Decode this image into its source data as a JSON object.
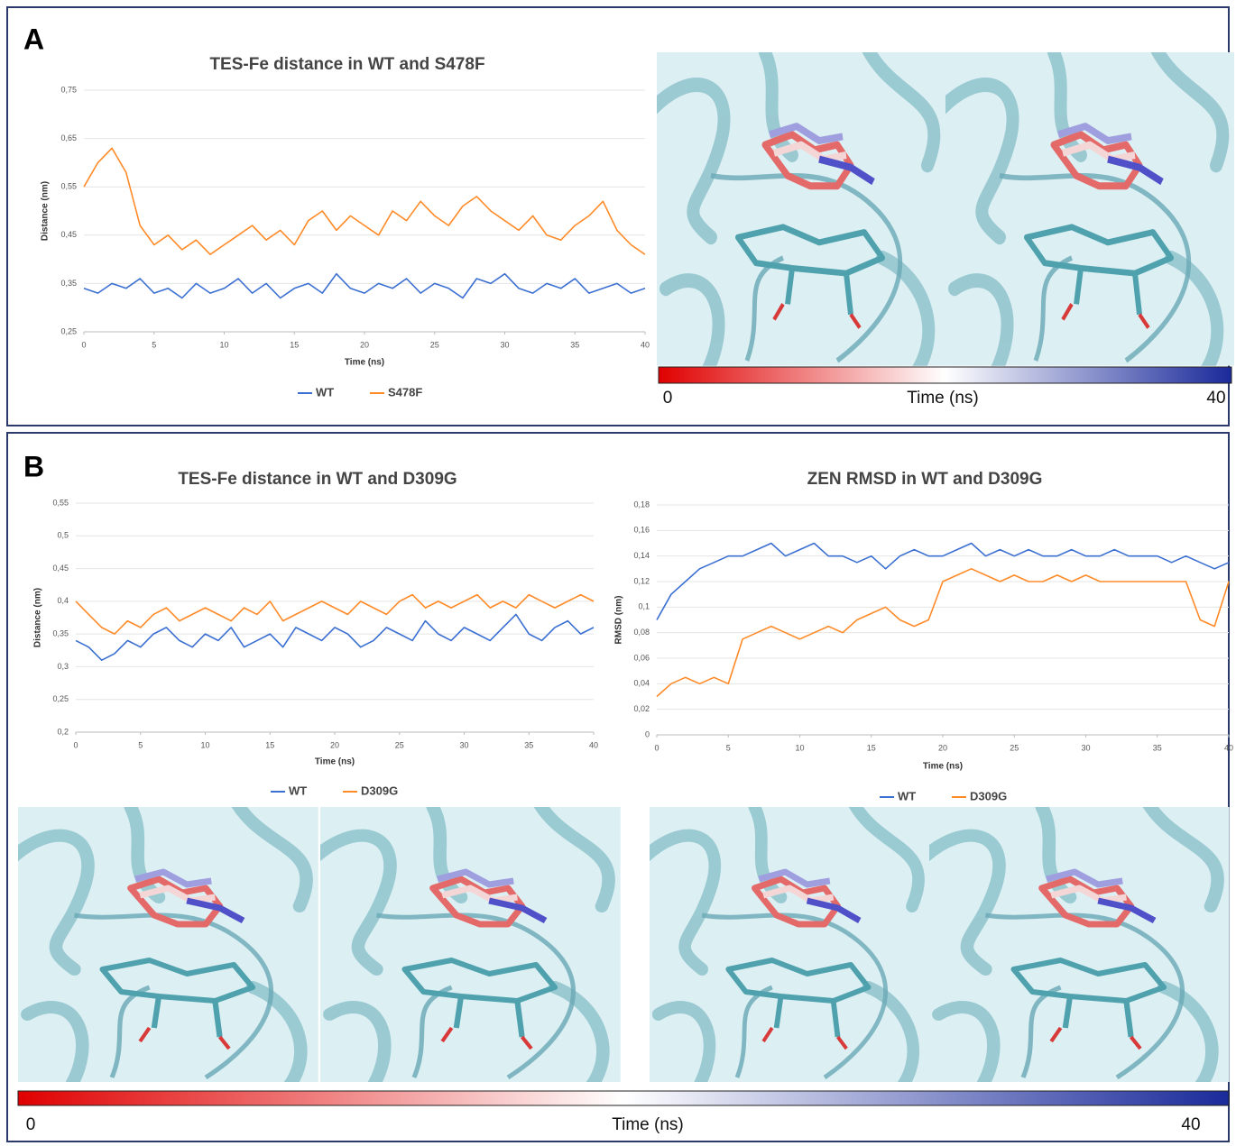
{
  "panels": [
    {
      "label": "A"
    },
    {
      "label": "B"
    }
  ],
  "colorbars": [
    {
      "range": [
        0,
        40
      ],
      "label": "Time (ns)"
    },
    {
      "range": [
        0,
        40
      ],
      "label": "Time (ns)"
    }
  ],
  "chart_data": [
    {
      "type": "line",
      "title": "TES-Fe distance in WT and S478F",
      "x_label": "Time (ns)",
      "y_label": "Distance (nm)",
      "grid": true,
      "x": [
        0,
        1,
        2,
        3,
        4,
        5,
        6,
        7,
        8,
        9,
        10,
        11,
        12,
        13,
        14,
        15,
        16,
        17,
        18,
        19,
        20,
        21,
        22,
        23,
        24,
        25,
        26,
        27,
        28,
        29,
        30,
        31,
        32,
        33,
        34,
        35,
        36,
        37,
        38,
        39,
        40
      ],
      "xlim": [
        0,
        40
      ],
      "xticks": [
        0,
        5,
        10,
        15,
        20,
        25,
        30,
        35,
        40
      ],
      "ylim": [
        0.25,
        0.75
      ],
      "yticks": [
        {
          "value": 0.25,
          "label": "0,25"
        },
        {
          "value": 0.35,
          "label": "0,35"
        },
        {
          "value": 0.45,
          "label": "0,45"
        },
        {
          "value": 0.55,
          "label": "0,55"
        },
        {
          "value": 0.65,
          "label": "0,65"
        },
        {
          "value": 0.75,
          "label": "0,75"
        }
      ],
      "series": [
        {
          "name": "WT",
          "color": "#3b6fd1",
          "values": [
            0.34,
            0.33,
            0.35,
            0.34,
            0.36,
            0.33,
            0.34,
            0.32,
            0.35,
            0.33,
            0.34,
            0.36,
            0.33,
            0.35,
            0.32,
            0.34,
            0.35,
            0.33,
            0.37,
            0.34,
            0.33,
            0.35,
            0.34,
            0.36,
            0.33,
            0.35,
            0.34,
            0.32,
            0.36,
            0.35,
            0.37,
            0.34,
            0.33,
            0.35,
            0.34,
            0.36,
            0.33,
            0.34,
            0.35,
            0.33,
            0.34
          ]
        },
        {
          "name": "S478F",
          "color": "#ff8a28",
          "values": [
            0.55,
            0.6,
            0.63,
            0.58,
            0.47,
            0.43,
            0.45,
            0.42,
            0.44,
            0.41,
            0.43,
            0.45,
            0.47,
            0.44,
            0.46,
            0.43,
            0.48,
            0.5,
            0.46,
            0.49,
            0.47,
            0.45,
            0.5,
            0.48,
            0.52,
            0.49,
            0.47,
            0.51,
            0.53,
            0.5,
            0.48,
            0.46,
            0.49,
            0.45,
            0.44,
            0.47,
            0.49,
            0.52,
            0.46,
            0.43,
            0.41
          ]
        }
      ]
    },
    {
      "type": "line",
      "title": "TES-Fe distance in WT and D309G",
      "x_label": "Time (ns)",
      "y_label": "Distance (nm)",
      "grid": true,
      "x": [
        0,
        1,
        2,
        3,
        4,
        5,
        6,
        7,
        8,
        9,
        10,
        11,
        12,
        13,
        14,
        15,
        16,
        17,
        18,
        19,
        20,
        21,
        22,
        23,
        24,
        25,
        26,
        27,
        28,
        29,
        30,
        31,
        32,
        33,
        34,
        35,
        36,
        37,
        38,
        39,
        40
      ],
      "xlim": [
        0,
        40
      ],
      "xticks": [
        0,
        5,
        10,
        15,
        20,
        25,
        30,
        35,
        40
      ],
      "ylim": [
        0.2,
        0.55
      ],
      "yticks": [
        {
          "value": 0.2,
          "label": "0,2"
        },
        {
          "value": 0.25,
          "label": "0,25"
        },
        {
          "value": 0.3,
          "label": "0,3"
        },
        {
          "value": 0.35,
          "label": "0,35"
        },
        {
          "value": 0.4,
          "label": "0,4"
        },
        {
          "value": 0.45,
          "label": "0,45"
        },
        {
          "value": 0.5,
          "label": "0,5"
        },
        {
          "value": 0.55,
          "label": "0,55"
        }
      ],
      "series": [
        {
          "name": "WT",
          "color": "#3b6fd1",
          "values": [
            0.34,
            0.33,
            0.31,
            0.32,
            0.34,
            0.33,
            0.35,
            0.36,
            0.34,
            0.33,
            0.35,
            0.34,
            0.36,
            0.33,
            0.34,
            0.35,
            0.33,
            0.36,
            0.35,
            0.34,
            0.36,
            0.35,
            0.33,
            0.34,
            0.36,
            0.35,
            0.34,
            0.37,
            0.35,
            0.34,
            0.36,
            0.35,
            0.34,
            0.36,
            0.38,
            0.35,
            0.34,
            0.36,
            0.37,
            0.35,
            0.36
          ]
        },
        {
          "name": "D309G",
          "color": "#ff8a28",
          "values": [
            0.4,
            0.38,
            0.36,
            0.35,
            0.37,
            0.36,
            0.38,
            0.39,
            0.37,
            0.38,
            0.39,
            0.38,
            0.37,
            0.39,
            0.38,
            0.4,
            0.37,
            0.38,
            0.39,
            0.4,
            0.39,
            0.38,
            0.4,
            0.39,
            0.38,
            0.4,
            0.41,
            0.39,
            0.4,
            0.39,
            0.4,
            0.41,
            0.39,
            0.4,
            0.39,
            0.41,
            0.4,
            0.39,
            0.4,
            0.41,
            0.4
          ]
        }
      ]
    },
    {
      "type": "line",
      "title": "ZEN RMSD in WT and D309G",
      "x_label": "Time (ns)",
      "y_label": "RMSD (nm)",
      "grid": true,
      "x": [
        0,
        1,
        2,
        3,
        4,
        5,
        6,
        7,
        8,
        9,
        10,
        11,
        12,
        13,
        14,
        15,
        16,
        17,
        18,
        19,
        20,
        21,
        22,
        23,
        24,
        25,
        26,
        27,
        28,
        29,
        30,
        31,
        32,
        33,
        34,
        35,
        36,
        37,
        38,
        39,
        40
      ],
      "xlim": [
        0,
        40
      ],
      "xticks": [
        0,
        5,
        10,
        15,
        20,
        25,
        30,
        35,
        40
      ],
      "ylim": [
        0,
        0.18
      ],
      "yticks": [
        0,
        {
          "value": 0.02,
          "label": "0,02"
        },
        {
          "value": 0.04,
          "label": "0,04"
        },
        {
          "value": 0.06,
          "label": "0,06"
        },
        {
          "value": 0.08,
          "label": "0,08"
        },
        {
          "value": 0.1,
          "label": "0,1"
        },
        {
          "value": 0.12,
          "label": "0,12"
        },
        {
          "value": 0.14,
          "label": "0,14"
        },
        {
          "value": 0.16,
          "label": "0,16"
        },
        {
          "value": 0.18,
          "label": "0,18"
        }
      ],
      "series": [
        {
          "name": "WT",
          "color": "#3b6fd1",
          "values": [
            0.09,
            0.11,
            0.12,
            0.13,
            0.135,
            0.14,
            0.14,
            0.145,
            0.15,
            0.14,
            0.145,
            0.15,
            0.14,
            0.14,
            0.135,
            0.14,
            0.13,
            0.14,
            0.145,
            0.14,
            0.14,
            0.145,
            0.15,
            0.14,
            0.145,
            0.14,
            0.145,
            0.14,
            0.14,
            0.145,
            0.14,
            0.14,
            0.145,
            0.14,
            0.14,
            0.14,
            0.135,
            0.14,
            0.135,
            0.13,
            0.135
          ]
        },
        {
          "name": "D309G",
          "color": "#ff8a28",
          "values": [
            0.03,
            0.04,
            0.045,
            0.04,
            0.045,
            0.04,
            0.075,
            0.08,
            0.085,
            0.08,
            0.075,
            0.08,
            0.085,
            0.08,
            0.09,
            0.095,
            0.1,
            0.09,
            0.085,
            0.09,
            0.12,
            0.125,
            0.13,
            0.125,
            0.12,
            0.125,
            0.12,
            0.12,
            0.125,
            0.12,
            0.125,
            0.12,
            0.12,
            0.12,
            0.12,
            0.12,
            0.12,
            0.12,
            0.09,
            0.085,
            0.12
          ]
        }
      ]
    }
  ]
}
